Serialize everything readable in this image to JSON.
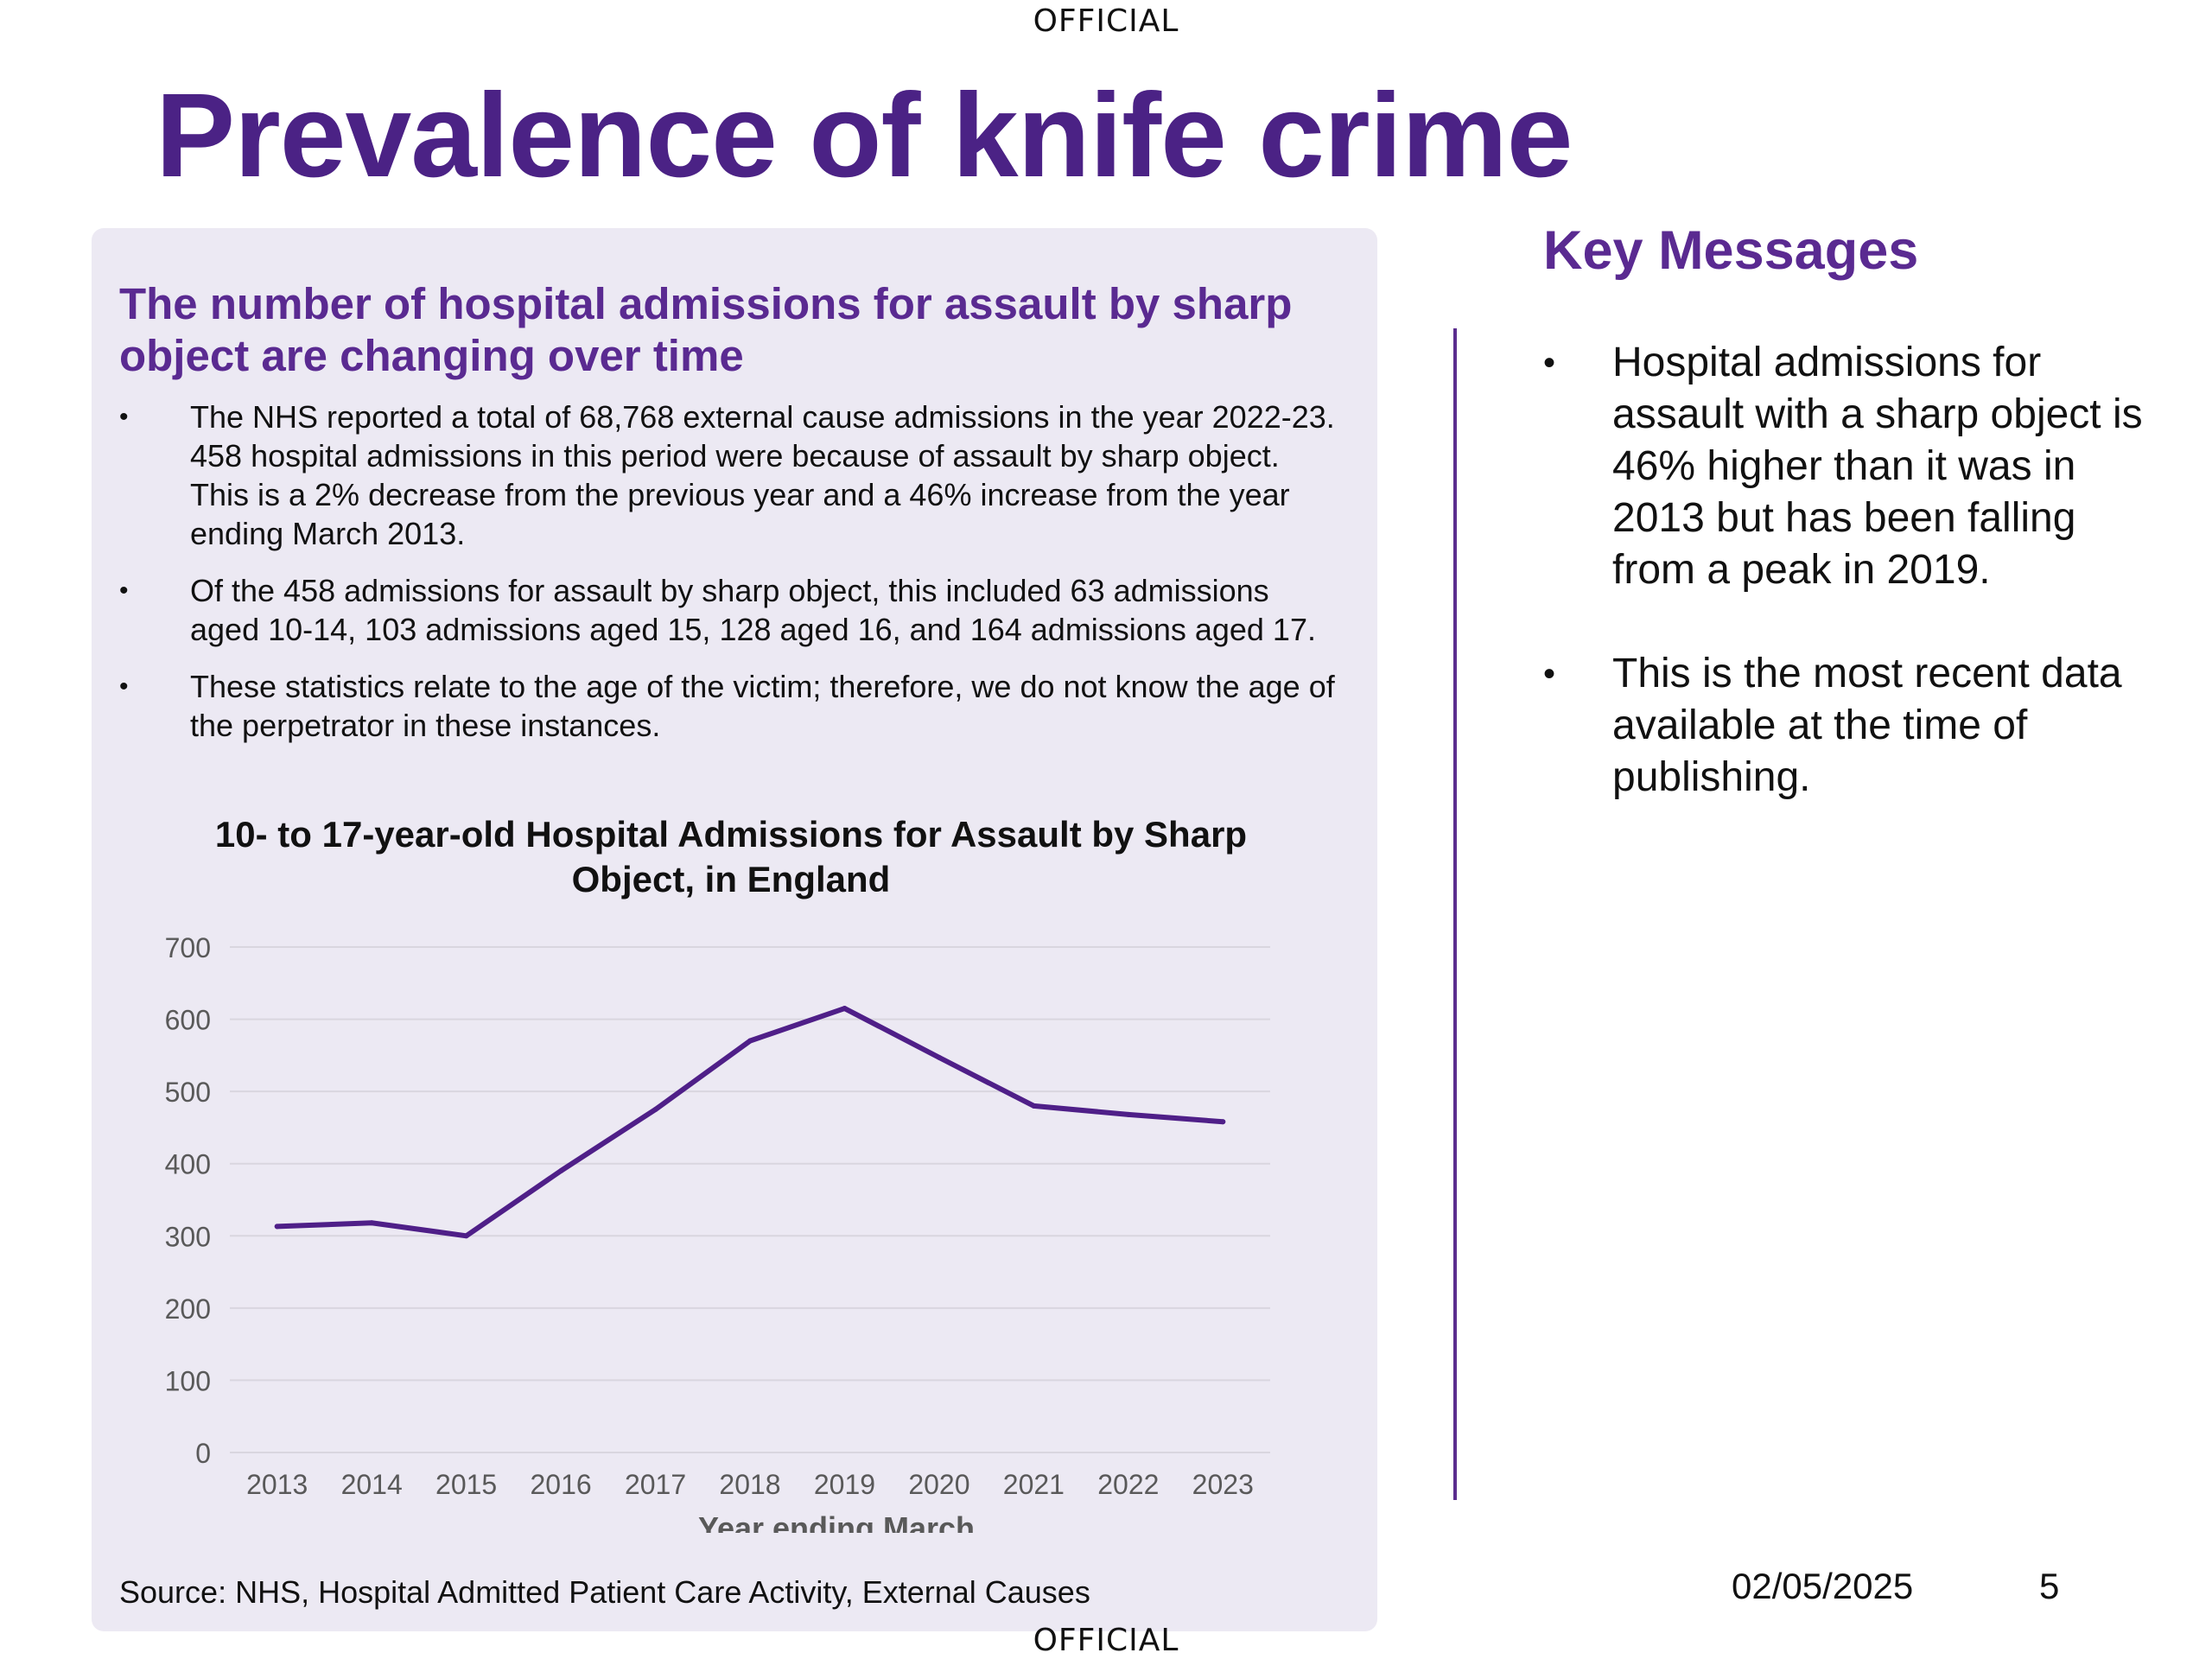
{
  "marking": {
    "top": "OFFICIAL",
    "bottom": "OFFICIAL"
  },
  "title": "Prevalence of knife crime",
  "left_panel": {
    "heading": "The number of hospital admissions for assault by sharp object are changing over time",
    "bullets": [
      "The NHS reported a total of 68,768 external cause admissions in the year 2022-23. 458 hospital admissions in this period were because of assault by sharp object. This is a 2% decrease from the previous year and a 46% increase from the year ending March 2013.",
      "Of the 458 admissions for assault by sharp object, this included 63 admissions aged 10-14, 103 admissions aged 15, 128 aged 16, and 164 admissions aged 17.",
      "These statistics relate to the age of the victim; therefore, we do not know the age of the perpetrator in these instances."
    ],
    "source": "Source: NHS, Hospital Admitted Patient Care Activity, External Causes"
  },
  "bullet_glyph": "•",
  "key_messages": {
    "heading": "Key Messages",
    "bullets": [
      "Hospital admissions for assault with a sharp object is 46% higher than it was in 2013 but has been falling from a peak in 2019.",
      "This is the most recent data available at the time of publishing."
    ]
  },
  "footer": {
    "date": "02/05/2025",
    "page_number": "5"
  },
  "colors": {
    "brand_purple": "#4b2285",
    "line": "#4f1f88",
    "panel_bg": "#ece9f3",
    "grid": "#d9d6df",
    "axis_text": "#595959"
  },
  "chart_data": {
    "type": "line",
    "title": "10- to 17-year-old Hospital Admissions for Assault by Sharp Object, in England",
    "xlabel": "Year ending March",
    "ylabel": "",
    "categories": [
      "2013",
      "2014",
      "2015",
      "2016",
      "2017",
      "2018",
      "2019",
      "2020",
      "2021",
      "2022",
      "2023"
    ],
    "values": [
      313,
      318,
      300,
      390,
      475,
      570,
      615,
      547,
      480,
      468,
      458
    ],
    "ylim": [
      0,
      700
    ],
    "yticks": [
      0,
      100,
      200,
      300,
      400,
      500,
      600,
      700
    ],
    "grid": true,
    "legend": false
  }
}
